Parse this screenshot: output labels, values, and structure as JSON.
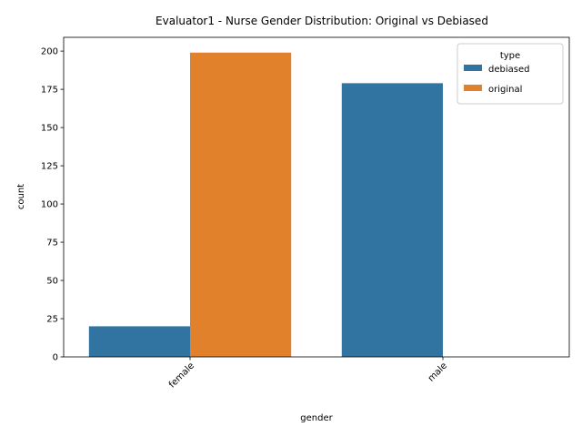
{
  "chart_data": {
    "type": "bar",
    "title": "Evaluator1 - Nurse Gender Distribution: Original vs Debiased",
    "xlabel": "gender",
    "ylabel": "count",
    "categories": [
      "female",
      "male"
    ],
    "series": [
      {
        "name": "debiased",
        "values": [
          20,
          179
        ],
        "color": "#3274a1"
      },
      {
        "name": "original",
        "values": [
          199,
          0
        ],
        "color": "#e1812c"
      }
    ],
    "ylim": [
      0,
      209
    ],
    "yticks": [
      0,
      25,
      50,
      75,
      100,
      125,
      150,
      175,
      200
    ],
    "grid": false,
    "legend": {
      "title": "type",
      "position": "top-right"
    }
  }
}
